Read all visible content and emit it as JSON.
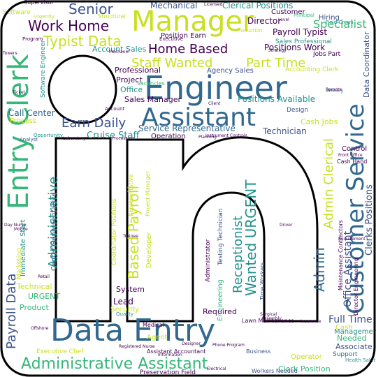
{
  "palette": {
    "purple": "#440154",
    "indigo": "#3b528b",
    "blue": "#31688e",
    "teal": "#21918c",
    "green": "#35b779",
    "lime": "#90d743",
    "yellow": "#c7e020",
    "dark": "#481f70"
  },
  "words": [
    {
      "text": "Data Entry",
      "color": "#31688e"
    },
    {
      "text": "Engineer",
      "color": "#31688e"
    },
    {
      "text": "Manager",
      "color": "#c7e020"
    },
    {
      "text": "Customer Service",
      "color": "#31688e"
    },
    {
      "text": "Entry Clerk",
      "color": "#35b779"
    },
    {
      "text": "Assistant",
      "color": "#31688e"
    },
    {
      "text": "Administrative Assistant",
      "color": "#35b779"
    },
    {
      "text": "Staff Wanted",
      "color": "#c7e020"
    },
    {
      "text": "Part Time",
      "color": "#c7e020"
    },
    {
      "text": "Typist Data",
      "color": "#c7e020"
    },
    {
      "text": "Work Home",
      "color": "#440154"
    },
    {
      "text": "Home Based",
      "color": "#440154"
    },
    {
      "text": "Senior",
      "color": "#3b528b"
    },
    {
      "text": "Earn Daily",
      "color": "#3b528b"
    },
    {
      "text": "Payroll Data",
      "color": "#3b528b"
    },
    {
      "text": "Based Payroll",
      "color": "#c7e020"
    },
    {
      "text": "Wanted URGENT",
      "color": "#21918c"
    },
    {
      "text": "Receptionist",
      "color": "#21918c"
    },
    {
      "text": "Admin Clerical",
      "color": "#c7e020"
    },
    {
      "text": "Admin",
      "color": "#31688e"
    },
    {
      "text": "Administrative",
      "color": "#21918c"
    },
    {
      "text": "Office Assistant",
      "color": "#3b528b"
    },
    {
      "text": "Clerks Positions",
      "color": "#3b528b"
    },
    {
      "text": "Clerical Positions",
      "color": "#21918c"
    },
    {
      "text": "Specialist",
      "color": "#35b779"
    },
    {
      "text": "Mechanical",
      "color": "#3b528b"
    },
    {
      "text": "Positions Work",
      "color": "#440154"
    },
    {
      "text": "Payroll Typist",
      "color": "#440154"
    },
    {
      "text": "Director",
      "color": "#440154"
    },
    {
      "text": "Position Earn",
      "color": "#440154"
    },
    {
      "text": "Account Sales",
      "color": "#21918c"
    },
    {
      "text": "Sales Professional",
      "color": "#21918c"
    },
    {
      "text": "Positions Available",
      "color": "#21918c"
    },
    {
      "text": "Professional",
      "color": "#440154"
    },
    {
      "text": "Project",
      "color": "#440154"
    },
    {
      "text": "Office",
      "color": "#21918c"
    },
    {
      "text": "Sales Manager",
      "color": "#440154"
    },
    {
      "text": "Agency Sales",
      "color": "#3b528b"
    },
    {
      "text": "Cash Jobs",
      "color": "#c7e020"
    },
    {
      "text": "Service Representative",
      "color": "#31688e"
    },
    {
      "text": "Cruise Staff",
      "color": "#21918c"
    },
    {
      "text": "Technician",
      "color": "#3b528b"
    },
    {
      "text": "Call Center",
      "color": "#31688e"
    },
    {
      "text": "Process",
      "color": "#c7e020"
    },
    {
      "text": "Operation",
      "color": "#440154"
    },
    {
      "text": "Control",
      "color": "#440154"
    },
    {
      "text": "Cash Hand",
      "color": "#440154"
    },
    {
      "text": "Full Time",
      "color": "#3b528b"
    },
    {
      "text": "Cash",
      "color": "#c7e020"
    },
    {
      "text": "Management",
      "color": "#21918c"
    },
    {
      "text": "Needed",
      "color": "#35b779"
    },
    {
      "text": "Associate",
      "color": "#3b528b"
    },
    {
      "text": "Support",
      "color": "#31688e"
    },
    {
      "text": "Clerk Position",
      "color": "#35b779"
    },
    {
      "text": "Operator",
      "color": "#c7e020"
    },
    {
      "text": "Business",
      "color": "#3b528b"
    },
    {
      "text": "Preservation Field",
      "color": "#440154"
    },
    {
      "text": "Assistant Accountant",
      "color": "#440154"
    },
    {
      "text": "Executive Chef",
      "color": "#c7e020"
    },
    {
      "text": "Agent",
      "color": "#c7e020"
    },
    {
      "text": "Product",
      "color": "#35b779"
    },
    {
      "text": "Security",
      "color": "#c7e020"
    },
    {
      "text": "Lead",
      "color": "#440154"
    },
    {
      "text": "Quality",
      "color": "#21918c"
    },
    {
      "text": "Required",
      "color": "#440154"
    },
    {
      "text": "System",
      "color": "#440154"
    },
    {
      "text": "Technical",
      "color": "#c7e020"
    },
    {
      "text": "URGENT",
      "color": "#35b779"
    },
    {
      "text": "Analyst",
      "color": "#3b528b"
    },
    {
      "text": "Developer",
      "color": "#c7e020"
    },
    {
      "text": "Engineering",
      "color": "#35b779"
    },
    {
      "text": "Testing Technician",
      "color": "#3b528b"
    },
    {
      "text": "Administrator",
      "color": "#440154"
    },
    {
      "text": "Time Workers",
      "color": "#3b528b"
    },
    {
      "text": "Lawn Maintenance",
      "color": "#440154"
    },
    {
      "text": "Coordinator Positions",
      "color": "#c7e020"
    },
    {
      "text": "Center Representative",
      "color": "#31688e"
    },
    {
      "text": "Immediate Start",
      "color": "#21918c"
    },
    {
      "text": "Software Engineer",
      "color": "#21918c"
    },
    {
      "text": "Data Coordinator",
      "color": "#3b528b"
    },
    {
      "text": "Accounting Clerk",
      "color": "#c7e020"
    },
    {
      "text": "Hiring",
      "color": "#3b528b"
    },
    {
      "text": "Jobs Part",
      "color": "#440154"
    },
    {
      "text": "Customer",
      "color": "#440154"
    },
    {
      "text": "Opportunity",
      "color": "#21918c"
    },
    {
      "text": "Design",
      "color": "#3b528b"
    },
    {
      "text": "Weekly",
      "color": "#21918c"
    },
    {
      "text": "Software",
      "color": "#c7e020"
    },
    {
      "text": "Supervisor",
      "color": "#440154"
    },
    {
      "text": "Vacancies",
      "color": "#35b779"
    },
    {
      "text": "Executive",
      "color": "#440154"
    },
    {
      "text": "Marketing",
      "color": "#c7e020"
    },
    {
      "text": "Representative",
      "color": "#c7e020"
    },
    {
      "text": "Medical",
      "color": "#440154"
    },
    {
      "text": "Project Manager",
      "color": "#c7e020"
    },
    {
      "text": "Account",
      "color": "#440154"
    },
    {
      "text": "Production",
      "color": "#c7e020"
    },
    {
      "text": "Health Safety",
      "color": "#21918c"
    },
    {
      "text": "Field Crews",
      "color": "#21918c"
    },
    {
      "text": "Structural",
      "color": "#c7e020"
    },
    {
      "text": "Principal",
      "color": "#35b779"
    },
    {
      "text": "Program",
      "color": "#440154"
    },
    {
      "text": "Maintenance Contractors",
      "color": "#440154"
    },
    {
      "text": "Director Engineering",
      "color": "#440154"
    },
    {
      "text": "Workers Needed",
      "color": "#3b528b"
    },
    {
      "text": "Electrical",
      "color": "#440154"
    },
    {
      "text": "Phone Program",
      "color": "#440154"
    },
    {
      "text": "Insurance",
      "color": "#440154"
    },
    {
      "text": "Mobile",
      "color": "#440154"
    },
    {
      "text": "Urgently",
      "color": "#c7e020"
    },
    {
      "text": "Licensed",
      "color": "#440154"
    },
    {
      "text": "Level",
      "color": "#440154"
    },
    {
      "text": "Strategy",
      "color": "#440154"
    },
    {
      "text": "Driver",
      "color": "#440154"
    },
    {
      "text": "Surgical",
      "color": "#440154"
    },
    {
      "text": "Assembly",
      "color": "#440154"
    },
    {
      "text": "Information",
      "color": "#440154"
    },
    {
      "text": "Registered Nurse",
      "color": "#440154"
    },
    {
      "text": "Processing",
      "color": "#440154"
    },
    {
      "text": "Mechanic",
      "color": "#440154"
    },
    {
      "text": "Client",
      "color": "#440154"
    },
    {
      "text": "Trainee",
      "color": "#440154"
    },
    {
      "text": "Retail",
      "color": "#440154"
    },
    {
      "text": "Requirement",
      "color": "#440154"
    },
    {
      "text": "Designer",
      "color": "#440154"
    },
    {
      "text": "Front Office",
      "color": "#440154"
    },
    {
      "text": "Remote",
      "color": "#440154"
    },
    {
      "text": "Towers",
      "color": "#440154"
    },
    {
      "text": "Offshore",
      "color": "#440154"
    },
    {
      "text": "Ticket",
      "color": "#440154"
    },
    {
      "text": "Laboratory",
      "color": "#440154"
    },
    {
      "text": "Instrument Controls",
      "color": "#440154"
    },
    {
      "text": "Day Nurse",
      "color": "#440154"
    },
    {
      "text": "Planning",
      "color": "#440154"
    }
  ]
}
